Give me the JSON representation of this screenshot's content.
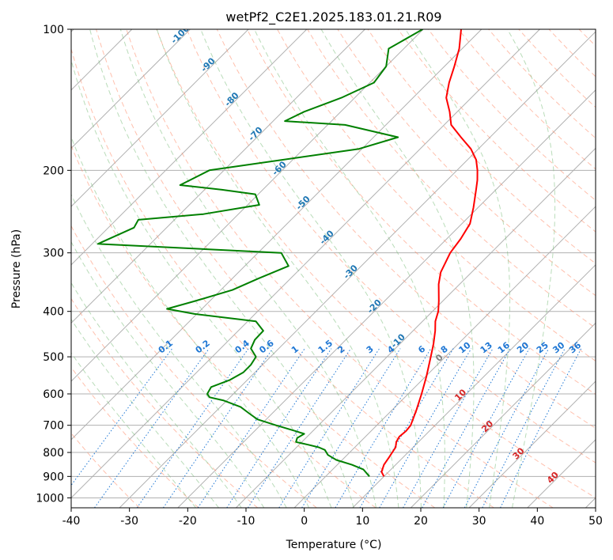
{
  "chart_data": {
    "type": "line",
    "subtype": "skew-t log-p diagram",
    "title": "wetPf2_C2E1.2025.183.01.21.R09",
    "xlabel": "Temperature (°C)",
    "ylabel": "Pressure (hPa)",
    "xlim": [
      -40,
      50
    ],
    "ylim": [
      1050,
      100
    ],
    "yscale": "log",
    "grid": true,
    "x_ticks": [
      "-40",
      "-30",
      "-20",
      "-10",
      "0",
      "10",
      "20",
      "30",
      "40",
      "50"
    ],
    "y_ticks": [
      "100",
      "200",
      "300",
      "400",
      "500",
      "600",
      "700",
      "800",
      "900",
      "1000"
    ],
    "series": [
      {
        "color": "#ff0000",
        "points": [
          [
            900,
            10.0
          ],
          [
            880,
            8.8
          ],
          [
            850,
            8.0
          ],
          [
            820,
            7.6
          ],
          [
            800,
            7.3
          ],
          [
            780,
            7.0
          ],
          [
            760,
            6.2
          ],
          [
            740,
            5.8
          ],
          [
            720,
            6.0
          ],
          [
            700,
            5.8
          ],
          [
            650,
            4.2
          ],
          [
            600,
            2.3
          ],
          [
            550,
            0.1
          ],
          [
            500,
            -2.5
          ],
          [
            470,
            -4.2
          ],
          [
            440,
            -6.2
          ],
          [
            420,
            -7.8
          ],
          [
            400,
            -9.0
          ],
          [
            380,
            -10.7
          ],
          [
            350,
            -13.6
          ],
          [
            330,
            -15.3
          ],
          [
            300,
            -17.0
          ],
          [
            280,
            -17.6
          ],
          [
            260,
            -18.6
          ],
          [
            240,
            -20.8
          ],
          [
            220,
            -23.4
          ],
          [
            210,
            -24.8
          ],
          [
            200,
            -26.5
          ],
          [
            190,
            -28.5
          ],
          [
            180,
            -31.3
          ],
          [
            170,
            -35.0
          ],
          [
            160,
            -38.8
          ],
          [
            150,
            -41.3
          ],
          [
            140,
            -44.3
          ],
          [
            130,
            -46.4
          ],
          [
            120,
            -48.3
          ],
          [
            110,
            -50.5
          ],
          [
            100,
            -53.5
          ]
        ]
      },
      {
        "color": "#008000",
        "points": [
          [
            900,
            7.5
          ],
          [
            870,
            5.3
          ],
          [
            850,
            2.5
          ],
          [
            830,
            -1.0
          ],
          [
            810,
            -3.3
          ],
          [
            790,
            -4.7
          ],
          [
            780,
            -6.2
          ],
          [
            770,
            -8.5
          ],
          [
            760,
            -11.0
          ],
          [
            745,
            -11.5
          ],
          [
            730,
            -11.0
          ],
          [
            720,
            -13.0
          ],
          [
            700,
            -17.3
          ],
          [
            680,
            -21.5
          ],
          [
            660,
            -24.0
          ],
          [
            640,
            -26.5
          ],
          [
            620,
            -30.5
          ],
          [
            610,
            -33.5
          ],
          [
            600,
            -34.5
          ],
          [
            580,
            -35.0
          ],
          [
            560,
            -33.0
          ],
          [
            540,
            -32.0
          ],
          [
            520,
            -32.0
          ],
          [
            500,
            -32.5
          ],
          [
            480,
            -34.8
          ],
          [
            460,
            -35.6
          ],
          [
            440,
            -35.7
          ],
          [
            420,
            -38.6
          ],
          [
            405,
            -50.4
          ],
          [
            395,
            -56.0
          ],
          [
            380,
            -52.5
          ],
          [
            360,
            -48.0
          ],
          [
            340,
            -45.5
          ],
          [
            320,
            -42.5
          ],
          [
            300,
            -46.0
          ],
          [
            287,
            -79.0
          ],
          [
            265,
            -75.6
          ],
          [
            255,
            -76.2
          ],
          [
            248,
            -66.0
          ],
          [
            237,
            -58.0
          ],
          [
            225,
            -60.5
          ],
          [
            220,
            -67.0
          ],
          [
            215,
            -75.0
          ],
          [
            200,
            -72.5
          ],
          [
            180,
            -50.5
          ],
          [
            170,
            -45.8
          ],
          [
            160,
            -57.0
          ],
          [
            157,
            -68.0
          ],
          [
            150,
            -66.3
          ],
          [
            140,
            -62.3
          ],
          [
            130,
            -59.3
          ],
          [
            120,
            -60.0
          ],
          [
            110,
            -62.6
          ],
          [
            100,
            -60.1
          ]
        ]
      }
    ],
    "isotherm_labels": [
      "-100",
      "-90",
      "-80",
      "-70",
      "-60",
      "-50",
      "-40",
      "-30",
      "-20",
      "-10",
      "0",
      "10",
      "20",
      "30",
      "40"
    ],
    "mixing_ratio_labels": [
      "0.1",
      "0.2",
      "0.4",
      "0.6",
      "1",
      "1.5",
      "2",
      "3",
      "4",
      "6",
      "8",
      "10",
      "13",
      "16",
      "20",
      "25",
      "30",
      "36"
    ],
    "colors": {
      "temperature": "#ff0000",
      "dewpoint": "#008000",
      "dry_adiabats": "#ff8c69",
      "moist_adiabats": "#7fbf7f",
      "mixing_ratio": "#1f77d4",
      "isotherm_labels_cold": "#1f77b4",
      "isotherm_labels_warm": "#d62728",
      "zero_label": "#808080",
      "grid": "#b0b0b0"
    }
  }
}
